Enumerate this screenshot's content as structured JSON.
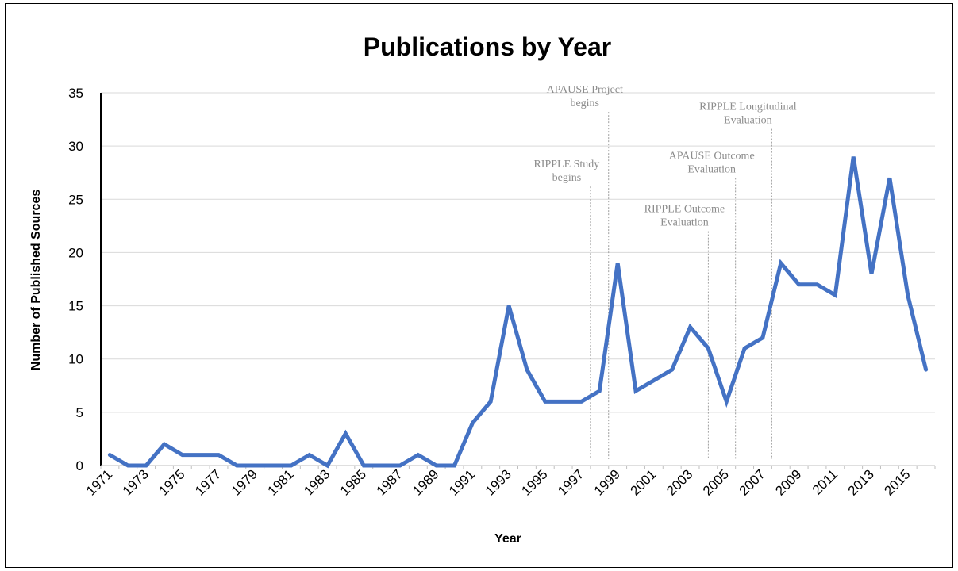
{
  "chart_data": {
    "type": "line",
    "title": "Publications by Year",
    "xlabel": "Year",
    "ylabel": "Number of Published Sources",
    "ylim": [
      0,
      35
    ],
    "yticks": [
      "0",
      "5",
      "10",
      "15",
      "20",
      "25",
      "30",
      "35"
    ],
    "grid": true,
    "legend": "none",
    "line_color": "#4472C4",
    "grid_color": "#d9d9d9",
    "annotation_color": "#8c8c8c",
    "x": [
      1971,
      1972,
      1973,
      1974,
      1975,
      1976,
      1977,
      1978,
      1979,
      1980,
      1981,
      1982,
      1983,
      1984,
      1985,
      1986,
      1987,
      1988,
      1989,
      1990,
      1991,
      1992,
      1993,
      1994,
      1995,
      1996,
      1997,
      1998,
      1999,
      2000,
      2001,
      2002,
      2003,
      2004,
      2005,
      2006,
      2007,
      2008,
      2009,
      2010,
      2011,
      2012,
      2013,
      2014,
      2015,
      2016
    ],
    "xtick_labels": [
      "1971",
      "1973",
      "1975",
      "1977",
      "1979",
      "1981",
      "1983",
      "1985",
      "1987",
      "1989",
      "1991",
      "1993",
      "1995",
      "1997",
      "1999",
      "2001",
      "2003",
      "2005",
      "2007",
      "2009",
      "2011",
      "2013",
      "2015"
    ],
    "series": [
      {
        "values": [
          1,
          0,
          0,
          2,
          1,
          1,
          1,
          0,
          0,
          0,
          0,
          1,
          0,
          3,
          0,
          0,
          0,
          1,
          0,
          0,
          4,
          6,
          15,
          9,
          6,
          6,
          6,
          7,
          19,
          7,
          8,
          9,
          13,
          11,
          6,
          11,
          12,
          19,
          17,
          17,
          16,
          29,
          18,
          27,
          16,
          9
        ]
      }
    ],
    "annotations": [
      {
        "lines": [
          "RIPPLE Study",
          "begins"
        ],
        "x": 1997.5,
        "y_top": 26.2
      },
      {
        "lines": [
          "APAUSE Project",
          "begins"
        ],
        "x": 1998.5,
        "y_top": 33.2
      },
      {
        "lines": [
          "RIPPLE Outcome",
          "Evaluation"
        ],
        "x": 2004.0,
        "y_top": 22.0
      },
      {
        "lines": [
          "APAUSE Outcome",
          "Evaluation"
        ],
        "x": 2005.5,
        "y_top": 27.0
      },
      {
        "lines": [
          "RIPPLE Longitudinal",
          "Evaluation"
        ],
        "x": 2007.5,
        "y_top": 31.6
      }
    ]
  }
}
